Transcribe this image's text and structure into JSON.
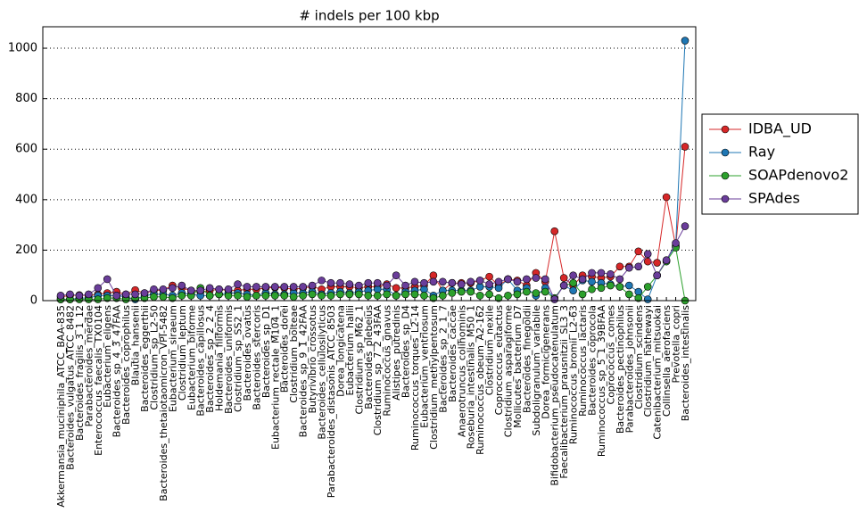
{
  "chart_data": {
    "type": "line",
    "title": "# indels per 100 kbp",
    "categories": [
      "Akkermansia_muciniphila_ATCC_BAA-835",
      "Bacteroides_vulgatus_ATCC_8482",
      "Bacteroides_fragilis_3_1_12",
      "Parabacteroides_merdae",
      "Enterococcus_faecalis_TX0104",
      "Eubacterium_eligens",
      "Bacteroides_sp_4_3_47FAA",
      "Bacteroides_coprophilus",
      "Blautia_hansenii",
      "Bacteroides_eggerthii",
      "Clostridium_sp_L2-50",
      "Bacteroides_thetaiotaomicron_VPI-5482",
      "Eubacterium_siraeum",
      "Clostridium_leptum",
      "Eubacterium_biforme",
      "Bacteroides_capillosus",
      "Bacteroides_sp_2_2_4",
      "Holdemania_filiformis",
      "Bacteroides_uniformis",
      "Clostridium_sp_SS2_1",
      "Bacteroides_ovatus",
      "Bacteroides_stercoris",
      "Bacteroides_sp_D1",
      "Eubacterium_rectale_M104_1",
      "Bacteroides_dorei",
      "Clostridium_bolteae",
      "Bacteroides_sp_9_1_42FAA",
      "Butyrivibrio_crossotus",
      "Bacteroides_cellulosilyticus",
      "Parabacteroides_distasonis_ATCC_8503",
      "Dorea_longicatena",
      "Eubacterium_hallii",
      "Clostridium_sp_M62_1",
      "Bacteroides_plebeius",
      "Clostridium_sp_7_2_43FAA",
      "Ruminococcus_gnavus",
      "Alistipes_putredinis",
      "Bacteroides_sp_D4",
      "Ruminococcus_torques_L2-14",
      "Eubacterium_ventriosum",
      "Clostridium_methylpentosum",
      "Bacteroides_sp_2_1_7",
      "Bacteroides_caccae",
      "Anaerotruncus_colihominis",
      "Roseburia_intestinalis_M50_1",
      "Ruminococcus_obeum_A2-162",
      "Clostridium_nexile",
      "Coprococcus_eutactus",
      "Clostridium_asparagiforme",
      "Mollicutes_bacterium_D7",
      "Bacteroides_finegoldii",
      "Subdoligranulum_variabile",
      "Dorea_formicigenerans",
      "Bifidobacterium_pseudocatenulatum",
      "Faecalibacterium_prausnitzii_SL3_3",
      "Ruminococcus_bromii_L2-63",
      "Ruminococcus_lactaris",
      "Bacteroides_coprocola",
      "Ruminococcus_sp_5_1_39BFAA",
      "Coprococcus_comes",
      "Bacteroides_pectinophilus",
      "Parabacteroides_johnsonii",
      "Clostridium_scindens",
      "Clostridium_hathewayi",
      "Catenibacterium_mitsuokai",
      "Collinsella_aerofaciens",
      "Prevotella_copri",
      "Bacteroides_intestinalis"
    ],
    "series": [
      {
        "name": "IDBA_UD",
        "color": "#d62728",
        "values": [
          15,
          20,
          22,
          20,
          25,
          30,
          35,
          25,
          42,
          30,
          40,
          42,
          60,
          50,
          40,
          35,
          40,
          45,
          40,
          40,
          45,
          45,
          50,
          52,
          50,
          45,
          50,
          55,
          45,
          55,
          55,
          55,
          50,
          55,
          55,
          65,
          50,
          50,
          55,
          60,
          100,
          40,
          70,
          70,
          70,
          80,
          95,
          60,
          85,
          80,
          60,
          110,
          75,
          275,
          90,
          60,
          100,
          95,
          90,
          95,
          135,
          135,
          195,
          155,
          150,
          410,
          215,
          610
        ]
      },
      {
        "name": "Ray",
        "color": "#1f77b4",
        "values": [
          5,
          5,
          10,
          10,
          20,
          20,
          20,
          15,
          5,
          20,
          25,
          25,
          20,
          30,
          25,
          20,
          20,
          25,
          30,
          30,
          25,
          20,
          30,
          25,
          25,
          30,
          30,
          35,
          25,
          30,
          35,
          30,
          35,
          40,
          45,
          45,
          20,
          35,
          40,
          45,
          20,
          40,
          40,
          40,
          40,
          55,
          55,
          50,
          85,
          40,
          50,
          20,
          50,
          10,
          60,
          40,
          80,
          75,
          70,
          65,
          55,
          60,
          35,
          5,
          100,
          160,
          220,
          1030
        ]
      },
      {
        "name": "SOAPdenovo2",
        "color": "#2ca02c",
        "values": [
          5,
          5,
          5,
          5,
          5,
          10,
          10,
          5,
          10,
          10,
          15,
          15,
          10,
          20,
          20,
          50,
          20,
          25,
          20,
          20,
          15,
          20,
          20,
          20,
          20,
          15,
          20,
          25,
          20,
          20,
          25,
          25,
          25,
          20,
          20,
          25,
          20,
          25,
          25,
          20,
          10,
          20,
          30,
          35,
          35,
          20,
          25,
          10,
          20,
          25,
          35,
          30,
          35,
          10,
          60,
          70,
          25,
          45,
          50,
          60,
          55,
          25,
          10,
          55,
          100,
          155,
          210,
          0
        ]
      },
      {
        "name": "SPAdes",
        "color": "#6a3d9a",
        "values": [
          20,
          25,
          20,
          25,
          50,
          85,
          20,
          25,
          25,
          30,
          45,
          45,
          50,
          60,
          40,
          40,
          50,
          45,
          45,
          65,
          55,
          55,
          55,
          55,
          55,
          55,
          55,
          60,
          80,
          70,
          70,
          65,
          60,
          70,
          70,
          60,
          100,
          60,
          75,
          70,
          75,
          75,
          70,
          65,
          75,
          80,
          65,
          75,
          85,
          75,
          85,
          90,
          85,
          5,
          60,
          100,
          85,
          110,
          110,
          105,
          85,
          130,
          135,
          185,
          100,
          160,
          228,
          295
        ]
      }
    ],
    "ylim": [
      0,
      1085
    ],
    "yticks": [
      0,
      200,
      400,
      600,
      800,
      1000
    ],
    "grid": true,
    "legend": "right"
  }
}
